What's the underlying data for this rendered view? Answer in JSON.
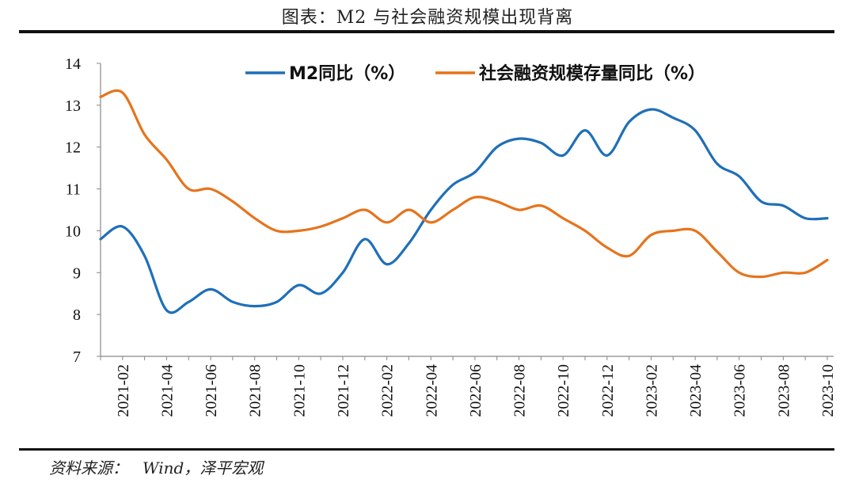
{
  "title": "图表：M2 与社会融资规模出现背离",
  "source": {
    "label": "资料来源：",
    "text": "Wind，泽平宏观"
  },
  "colors": {
    "m2": "#1f6fb8",
    "tsf": "#e6741c"
  },
  "chart_data": {
    "type": "line",
    "title": "图表：M2 与社会融资规模出现背离",
    "ylim": [
      7,
      14
    ],
    "yticks": [
      7,
      8,
      9,
      10,
      11,
      12,
      13,
      14
    ],
    "x": [
      "2021-01",
      "2021-02",
      "2021-03",
      "2021-04",
      "2021-05",
      "2021-06",
      "2021-07",
      "2021-08",
      "2021-09",
      "2021-10",
      "2021-11",
      "2021-12",
      "2022-01",
      "2022-02",
      "2022-03",
      "2022-04",
      "2022-05",
      "2022-06",
      "2022-07",
      "2022-08",
      "2022-09",
      "2022-10",
      "2022-11",
      "2022-12",
      "2023-01",
      "2023-02",
      "2023-03",
      "2023-04",
      "2023-05",
      "2023-06",
      "2023-07",
      "2023-08",
      "2023-09",
      "2023-10"
    ],
    "xticks": [
      "2021-02",
      "2021-04",
      "2021-06",
      "2021-08",
      "2021-10",
      "2021-12",
      "2022-02",
      "2022-04",
      "2022-06",
      "2022-08",
      "2022-10",
      "2022-12",
      "2023-02",
      "2023-04",
      "2023-06",
      "2023-08",
      "2023-10"
    ],
    "series": [
      {
        "name": "M2同比（%）",
        "color": "#1f6fb8",
        "values": [
          9.8,
          10.1,
          9.4,
          8.1,
          8.3,
          8.6,
          8.3,
          8.2,
          8.3,
          8.7,
          8.5,
          9.0,
          9.8,
          9.2,
          9.7,
          10.5,
          11.1,
          11.4,
          12.0,
          12.2,
          12.1,
          11.8,
          12.4,
          11.8,
          12.6,
          12.9,
          12.7,
          12.4,
          11.6,
          11.3,
          10.7,
          10.6,
          10.3,
          10.3
        ]
      },
      {
        "name": "社会融资规模存量同比（%）",
        "color": "#e6741c",
        "values": [
          13.2,
          13.3,
          12.3,
          11.7,
          11.0,
          11.0,
          10.7,
          10.3,
          10.0,
          10.0,
          10.1,
          10.3,
          10.5,
          10.2,
          10.5,
          10.2,
          10.5,
          10.8,
          10.7,
          10.5,
          10.6,
          10.3,
          10.0,
          9.6,
          9.4,
          9.9,
          10.0,
          10.0,
          9.5,
          9.0,
          8.9,
          9.0,
          9.0,
          9.3
        ]
      }
    ],
    "legend": "top-center"
  }
}
